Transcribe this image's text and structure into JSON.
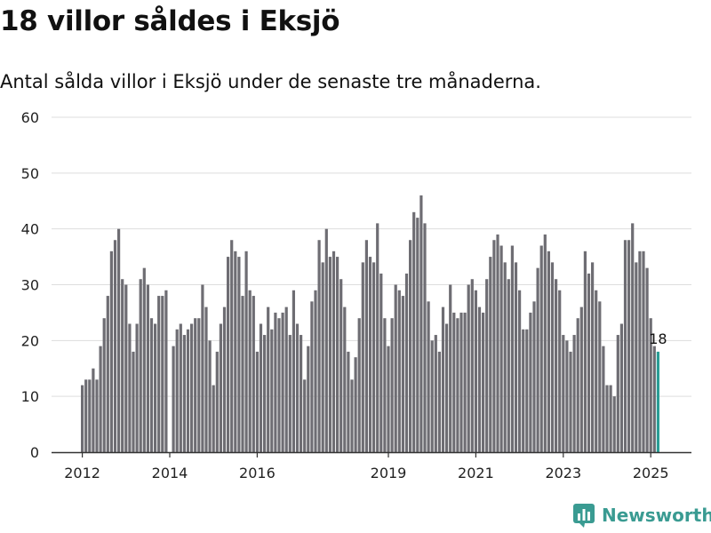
{
  "header": {
    "title": "18 villor såldes i Eksjö",
    "subtitle": "Antal sålda villor i Eksjö under de senaste tre månaderna."
  },
  "brand": {
    "name": "Newsworthy",
    "icon": "newsworthy-logo-icon"
  },
  "colors": {
    "bar": "#6e6d73",
    "highlight": "#2a9d95",
    "grid": "#dddddd",
    "axis": "#333333",
    "brand": "#3a9b92"
  },
  "chart_data": {
    "type": "bar",
    "title": "",
    "xlabel": "",
    "ylabel": "",
    "ylim": [
      0,
      60
    ],
    "yticks": [
      "0",
      "10",
      "20",
      "30",
      "40",
      "50",
      "60"
    ],
    "xtick_labels": [
      "2012",
      "2014",
      "2016",
      "2019",
      "2021",
      "2023",
      "2025"
    ],
    "grid": true,
    "start_month": "2012-01",
    "end_month": "2025-03",
    "highlight_label": "18",
    "series": [
      {
        "values": [
          12,
          13,
          13,
          15,
          13,
          19,
          24,
          28,
          36,
          38,
          40,
          31,
          30,
          23,
          18,
          23,
          31,
          33,
          30,
          24,
          23,
          28,
          28,
          29,
          0,
          19,
          22,
          23,
          21,
          22,
          23,
          24,
          24,
          30,
          26,
          20,
          12,
          18,
          23,
          26,
          35,
          38,
          36,
          35,
          28,
          36,
          29,
          28,
          18,
          23,
          21,
          26,
          22,
          25,
          24,
          25,
          26,
          21,
          29,
          23,
          21,
          13,
          19,
          27,
          29,
          38,
          34,
          40,
          35,
          36,
          35,
          31,
          26,
          18,
          13,
          17,
          24,
          34,
          38,
          35,
          34,
          41,
          32,
          24,
          19,
          24,
          30,
          29,
          28,
          32,
          38,
          43,
          42,
          46,
          41,
          27,
          20,
          21,
          18,
          26,
          23,
          30,
          25,
          24,
          25,
          25,
          30,
          31,
          29,
          26,
          25,
          31,
          35,
          38,
          39,
          37,
          34,
          31,
          37,
          34,
          29,
          22,
          22,
          25,
          27,
          33,
          37,
          39,
          36,
          34,
          31,
          29,
          21,
          20,
          18,
          21,
          24,
          26,
          36,
          32,
          34,
          29,
          27,
          19,
          12,
          12,
          10,
          21,
          23,
          38,
          38,
          41,
          34,
          36,
          36,
          33,
          24,
          19,
          18
        ]
      }
    ]
  }
}
